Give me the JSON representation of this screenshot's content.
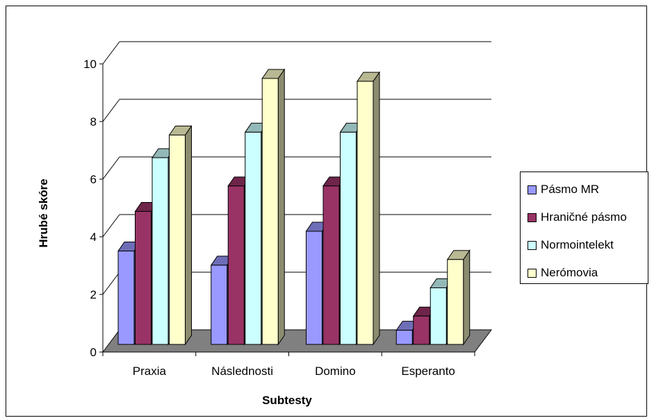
{
  "chart_data": {
    "type": "bar",
    "style": "3d-clustered-column",
    "categories": [
      "Praxia",
      "Následnosti",
      "Domino",
      "Esperanto"
    ],
    "series": [
      {
        "name": "Pásmo MR",
        "color": "#9999FF",
        "values": [
          3.3,
          2.8,
          4.0,
          0.5
        ]
      },
      {
        "name": "Hraničné pásmo",
        "color": "#993366",
        "values": [
          4.7,
          5.6,
          5.6,
          1.0
        ]
      },
      {
        "name": "Normointelekt",
        "color": "#CCFFFF",
        "values": [
          6.6,
          7.5,
          7.5,
          2.0
        ]
      },
      {
        "name": "Nerómovia",
        "color": "#FFFFCC",
        "values": [
          7.4,
          9.4,
          9.3,
          3.0
        ]
      }
    ],
    "xlabel": "Subtesty",
    "ylabel": "Hrubé skóre",
    "ylim": [
      0,
      10
    ],
    "yticks": [
      0,
      2,
      4,
      6,
      8,
      10
    ],
    "grid": true,
    "legend_position": "right",
    "floor_color": "#808080"
  }
}
